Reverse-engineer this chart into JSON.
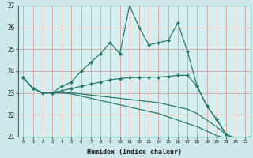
{
  "xlabel": "Humidex (Indice chaleur)",
  "background_color": "#cce8e8",
  "plot_bg_color": "#d6f0f0",
  "grid_color": "#d4a0a0",
  "line_color": "#2a7a6a",
  "border_color": "#2a7a6a",
  "xlim": [
    -0.5,
    23.5
  ],
  "ylim": [
    21,
    27
  ],
  "yticks": [
    21,
    22,
    23,
    24,
    25,
    26,
    27
  ],
  "xticks": [
    0,
    1,
    2,
    3,
    4,
    5,
    6,
    7,
    8,
    9,
    10,
    11,
    12,
    13,
    14,
    15,
    16,
    17,
    18,
    19,
    20,
    21,
    22,
    23
  ],
  "series1_x": [
    0,
    1,
    2,
    3,
    4,
    5,
    6,
    7,
    8,
    9,
    10,
    11,
    12,
    13,
    14,
    15,
    16,
    17,
    18,
    19,
    20,
    21,
    22,
    23
  ],
  "series1_y": [
    23.7,
    23.2,
    23.0,
    23.0,
    23.3,
    23.5,
    24.0,
    24.4,
    24.8,
    25.3,
    24.8,
    27.0,
    26.0,
    25.2,
    25.3,
    25.4,
    26.2,
    24.9,
    23.3,
    22.4,
    21.8,
    21.1,
    20.9,
    20.85
  ],
  "series2_x": [
    0,
    1,
    2,
    3,
    4,
    5,
    6,
    7,
    8,
    9,
    10,
    11,
    12,
    13,
    14,
    15,
    16,
    17,
    18,
    19,
    20,
    21,
    22,
    23
  ],
  "series2_y": [
    23.7,
    23.2,
    23.0,
    23.0,
    23.1,
    23.2,
    23.3,
    23.4,
    23.5,
    23.6,
    23.65,
    23.7,
    23.7,
    23.72,
    23.72,
    23.75,
    23.8,
    23.8,
    23.3,
    22.4,
    21.8,
    21.1,
    20.9,
    20.85
  ],
  "series3_x": [
    0,
    1,
    2,
    3,
    4,
    5,
    6,
    7,
    8,
    9,
    10,
    11,
    12,
    13,
    14,
    15,
    16,
    17,
    18,
    19,
    20,
    21,
    22,
    23
  ],
  "series3_y": [
    23.7,
    23.2,
    23.0,
    23.0,
    23.0,
    23.0,
    22.95,
    22.9,
    22.85,
    22.8,
    22.75,
    22.7,
    22.65,
    22.6,
    22.55,
    22.45,
    22.35,
    22.25,
    22.05,
    21.75,
    21.45,
    21.1,
    20.9,
    20.85
  ],
  "series4_x": [
    0,
    1,
    2,
    3,
    4,
    5,
    6,
    7,
    8,
    9,
    10,
    11,
    12,
    13,
    14,
    15,
    16,
    17,
    18,
    19,
    20,
    21,
    22,
    23
  ],
  "series4_y": [
    23.7,
    23.2,
    23.0,
    23.0,
    23.0,
    22.95,
    22.85,
    22.75,
    22.65,
    22.55,
    22.45,
    22.35,
    22.25,
    22.15,
    22.05,
    21.9,
    21.75,
    21.6,
    21.45,
    21.25,
    21.05,
    20.9,
    20.85,
    20.82
  ]
}
